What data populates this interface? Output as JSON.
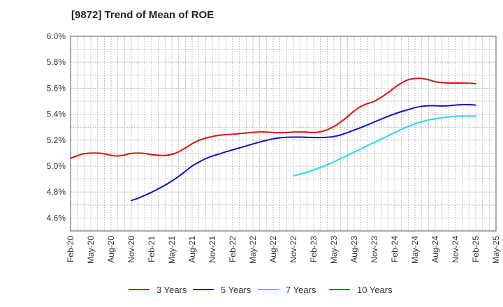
{
  "chart_data": {
    "type": "line",
    "title": "[9872]  Trend of Mean of ROE",
    "xlabel": "",
    "ylabel": "",
    "ylim": [
      4.5,
      6.0
    ],
    "yticks": [
      "4.6%",
      "4.8%",
      "5.0%",
      "5.2%",
      "5.4%",
      "5.6%",
      "5.8%",
      "6.0%"
    ],
    "x_tick_labels": [
      "Feb-20",
      "May-20",
      "Aug-20",
      "Nov-20",
      "Feb-21",
      "May-21",
      "Aug-21",
      "Nov-21",
      "Feb-22",
      "May-22",
      "Aug-22",
      "Nov-22",
      "Feb-23",
      "May-23",
      "Aug-23",
      "Nov-23",
      "Feb-24",
      "May-24",
      "Aug-24",
      "Nov-24",
      "Feb-25",
      "May-25"
    ],
    "x_range": [
      "Feb-20",
      "May-25"
    ],
    "grid": true,
    "legend_position": "bottom",
    "series": [
      {
        "name": "3 Years",
        "color": "#dd1111",
        "points": [
          [
            "Feb-20",
            5.06
          ],
          [
            "Mar-20",
            5.08
          ],
          [
            "Apr-20",
            5.095
          ],
          [
            "May-20",
            5.1
          ],
          [
            "Jun-20",
            5.1
          ],
          [
            "Jul-20",
            5.095
          ],
          [
            "Aug-20",
            5.083
          ],
          [
            "Sep-20",
            5.078
          ],
          [
            "Oct-20",
            5.085
          ],
          [
            "Nov-20",
            5.098
          ],
          [
            "Dec-20",
            5.1
          ],
          [
            "Jan-21",
            5.097
          ],
          [
            "Feb-21",
            5.088
          ],
          [
            "Mar-21",
            5.083
          ],
          [
            "Apr-21",
            5.082
          ],
          [
            "May-21",
            5.09
          ],
          [
            "Jun-21",
            5.11
          ],
          [
            "Jul-21",
            5.14
          ],
          [
            "Aug-21",
            5.172
          ],
          [
            "Sep-21",
            5.198
          ],
          [
            "Oct-21",
            5.215
          ],
          [
            "Nov-21",
            5.228
          ],
          [
            "Dec-21",
            5.237
          ],
          [
            "Jan-22",
            5.242
          ],
          [
            "Feb-22",
            5.245
          ],
          [
            "Mar-22",
            5.25
          ],
          [
            "Apr-22",
            5.255
          ],
          [
            "May-22",
            5.26
          ],
          [
            "Jun-22",
            5.263
          ],
          [
            "Jul-22",
            5.262
          ],
          [
            "Aug-22",
            5.258
          ],
          [
            "Sep-22",
            5.257
          ],
          [
            "Oct-22",
            5.258
          ],
          [
            "Nov-22",
            5.262
          ],
          [
            "Dec-22",
            5.263
          ],
          [
            "Jan-23",
            5.262
          ],
          [
            "Feb-23",
            5.258
          ],
          [
            "Mar-23",
            5.265
          ],
          [
            "Apr-23",
            5.28
          ],
          [
            "May-23",
            5.305
          ],
          [
            "Jun-23",
            5.34
          ],
          [
            "Jul-23",
            5.38
          ],
          [
            "Aug-23",
            5.425
          ],
          [
            "Sep-23",
            5.46
          ],
          [
            "Oct-23",
            5.482
          ],
          [
            "Nov-23",
            5.5
          ],
          [
            "Dec-23",
            5.53
          ],
          [
            "Jan-24",
            5.565
          ],
          [
            "Feb-24",
            5.605
          ],
          [
            "Mar-24",
            5.64
          ],
          [
            "Apr-24",
            5.665
          ],
          [
            "May-24",
            5.675
          ],
          [
            "Jun-24",
            5.675
          ],
          [
            "Jul-24",
            5.665
          ],
          [
            "Aug-24",
            5.65
          ],
          [
            "Sep-24",
            5.643
          ],
          [
            "Oct-24",
            5.64
          ],
          [
            "Nov-24",
            5.64
          ],
          [
            "Dec-24",
            5.64
          ],
          [
            "Jan-25",
            5.638
          ],
          [
            "Feb-25",
            5.635
          ]
        ]
      },
      {
        "name": "5 Years",
        "color": "#1111cc",
        "points": [
          [
            "Nov-20",
            4.735
          ],
          [
            "Dec-20",
            4.752
          ],
          [
            "Jan-21",
            4.775
          ],
          [
            "Feb-21",
            4.798
          ],
          [
            "Mar-21",
            4.825
          ],
          [
            "Apr-21",
            4.853
          ],
          [
            "May-21",
            4.885
          ],
          [
            "Jun-21",
            4.92
          ],
          [
            "Jul-21",
            4.96
          ],
          [
            "Aug-21",
            5.0
          ],
          [
            "Sep-21",
            5.03
          ],
          [
            "Oct-21",
            5.057
          ],
          [
            "Nov-21",
            5.077
          ],
          [
            "Dec-21",
            5.093
          ],
          [
            "Jan-22",
            5.11
          ],
          [
            "Feb-22",
            5.125
          ],
          [
            "Mar-22",
            5.14
          ],
          [
            "Apr-22",
            5.155
          ],
          [
            "May-22",
            5.17
          ],
          [
            "Jun-22",
            5.185
          ],
          [
            "Jul-22",
            5.198
          ],
          [
            "Aug-22",
            5.21
          ],
          [
            "Sep-22",
            5.218
          ],
          [
            "Oct-22",
            5.222
          ],
          [
            "Nov-22",
            5.223
          ],
          [
            "Dec-22",
            5.223
          ],
          [
            "Jan-23",
            5.222
          ],
          [
            "Feb-23",
            5.22
          ],
          [
            "Mar-23",
            5.22
          ],
          [
            "Apr-23",
            5.222
          ],
          [
            "May-23",
            5.228
          ],
          [
            "Jun-23",
            5.24
          ],
          [
            "Jul-23",
            5.258
          ],
          [
            "Aug-23",
            5.278
          ],
          [
            "Sep-23",
            5.297
          ],
          [
            "Oct-23",
            5.318
          ],
          [
            "Nov-23",
            5.34
          ],
          [
            "Dec-23",
            5.362
          ],
          [
            "Jan-24",
            5.383
          ],
          [
            "Feb-24",
            5.402
          ],
          [
            "Mar-24",
            5.42
          ],
          [
            "Apr-24",
            5.435
          ],
          [
            "May-24",
            5.45
          ],
          [
            "Jun-24",
            5.46
          ],
          [
            "Jul-24",
            5.465
          ],
          [
            "Aug-24",
            5.465
          ],
          [
            "Sep-24",
            5.463
          ],
          [
            "Oct-24",
            5.465
          ],
          [
            "Nov-24",
            5.47
          ],
          [
            "Dec-24",
            5.473
          ],
          [
            "Jan-25",
            5.473
          ],
          [
            "Feb-25",
            5.47
          ]
        ]
      },
      {
        "name": "7 Years",
        "color": "#22dddd",
        "points": [
          [
            "Nov-22",
            4.925
          ],
          [
            "Dec-22",
            4.937
          ],
          [
            "Jan-23",
            4.952
          ],
          [
            "Feb-23",
            4.97
          ],
          [
            "Mar-23",
            4.99
          ],
          [
            "Apr-23",
            5.01
          ],
          [
            "May-23",
            5.033
          ],
          [
            "Jun-23",
            5.057
          ],
          [
            "Jul-23",
            5.082
          ],
          [
            "Aug-23",
            5.108
          ],
          [
            "Sep-23",
            5.133
          ],
          [
            "Oct-23",
            5.158
          ],
          [
            "Nov-23",
            5.183
          ],
          [
            "Dec-23",
            5.208
          ],
          [
            "Jan-24",
            5.233
          ],
          [
            "Feb-24",
            5.258
          ],
          [
            "Mar-24",
            5.282
          ],
          [
            "Apr-24",
            5.305
          ],
          [
            "May-24",
            5.325
          ],
          [
            "Jun-24",
            5.342
          ],
          [
            "Jul-24",
            5.355
          ],
          [
            "Aug-24",
            5.365
          ],
          [
            "Sep-24",
            5.372
          ],
          [
            "Oct-24",
            5.378
          ],
          [
            "Nov-24",
            5.383
          ],
          [
            "Dec-24",
            5.385
          ],
          [
            "Jan-25",
            5.385
          ],
          [
            "Feb-25",
            5.385
          ]
        ]
      },
      {
        "name": "10 Years",
        "color": "#228822",
        "points": []
      }
    ]
  }
}
